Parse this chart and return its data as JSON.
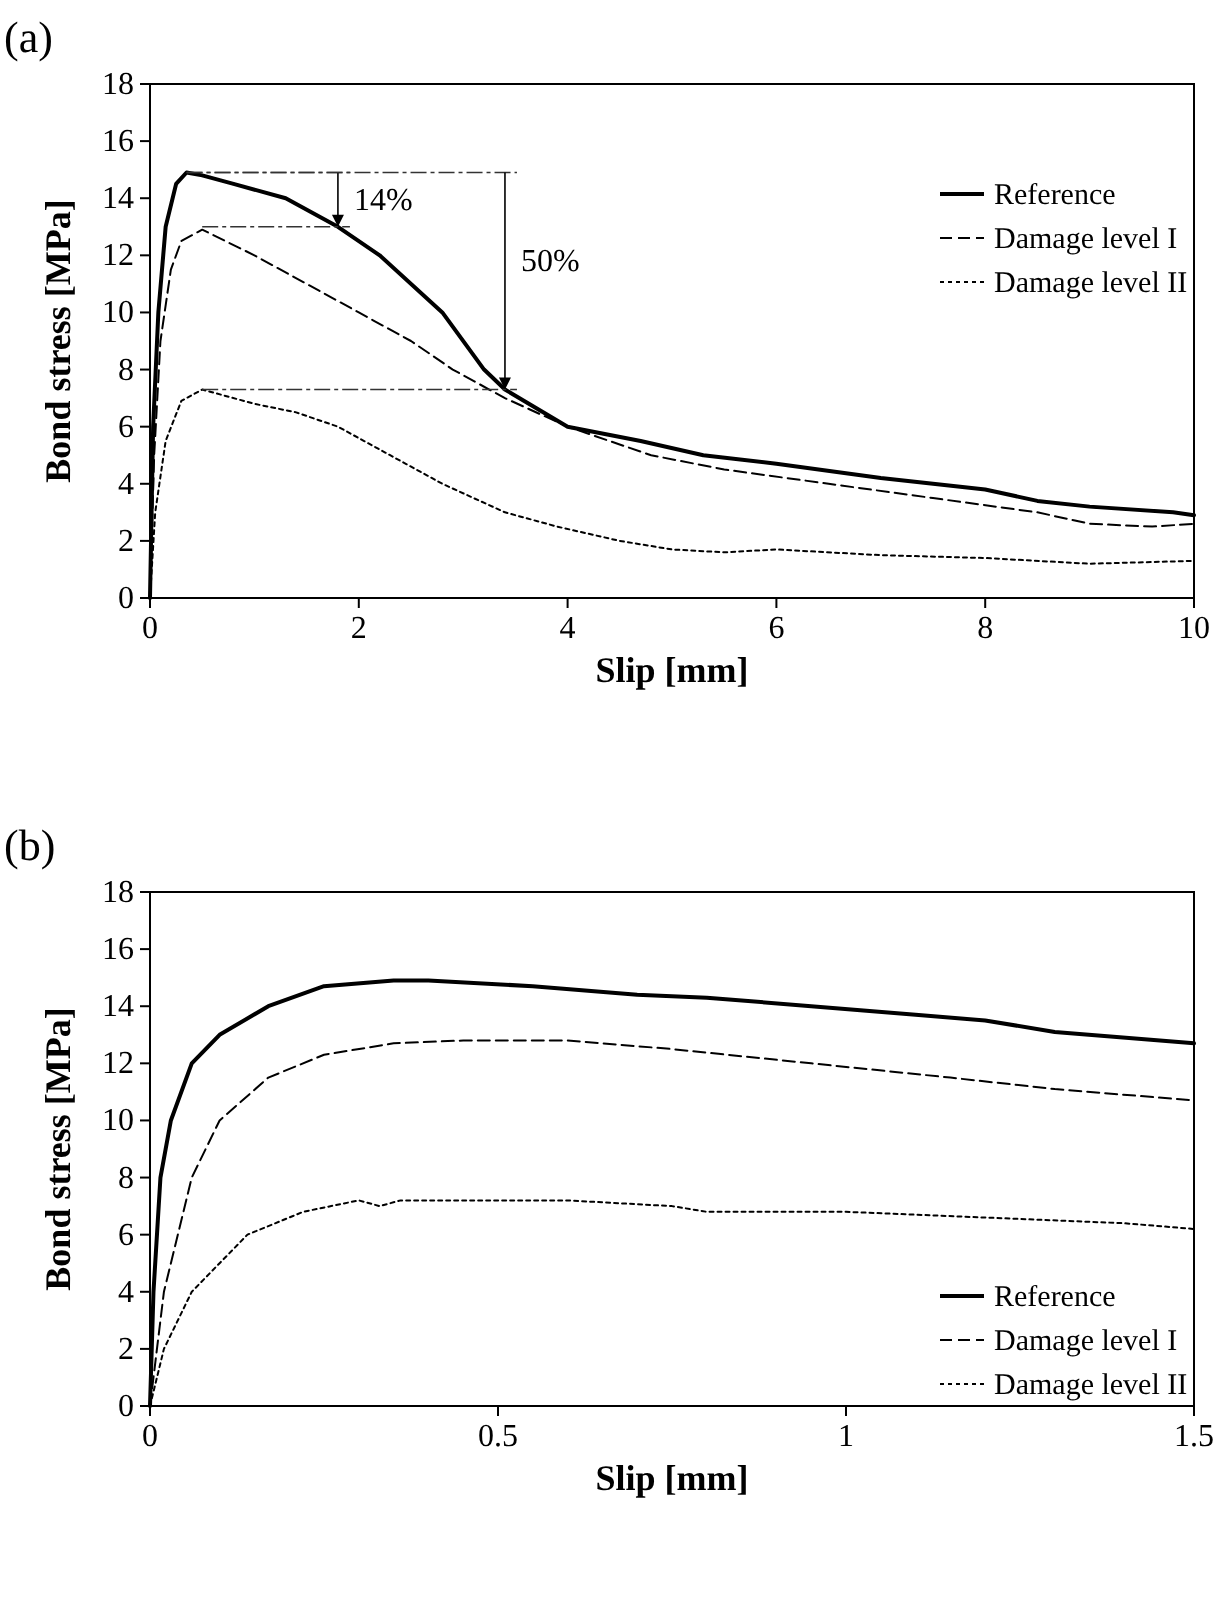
{
  "chart_data": [
    {
      "type": "line",
      "title": "(a)",
      "xlabel": "Slip [mm]",
      "ylabel": "Bond stress [MPa]",
      "xlim": [
        0,
        10
      ],
      "ylim": [
        0,
        18
      ],
      "xticks": [
        0,
        2,
        4,
        6,
        8,
        10
      ],
      "yticks": [
        0,
        2,
        4,
        6,
        8,
        10,
        12,
        14,
        16,
        18
      ],
      "legend": "top right",
      "grid": false,
      "annotations": [
        {
          "text": "14%",
          "x": 1.8,
          "y": 13
        },
        "50%"
      ],
      "series": [
        {
          "name": "Reference",
          "color": "#000000",
          "line_style": "solid",
          "x": [
            0,
            0.03,
            0.08,
            0.15,
            0.25,
            0.35,
            0.5,
            0.8,
            1.3,
            1.8,
            2.2,
            2.8,
            3.2,
            3.4,
            4,
            4.7,
            5.3,
            6,
            7,
            8,
            8.5,
            9,
            9.8,
            10
          ],
          "values": [
            0,
            6,
            10,
            13,
            14.5,
            14.9,
            14.8,
            14.5,
            14,
            13,
            12,
            10,
            8,
            7.3,
            6,
            5.5,
            5,
            4.7,
            4.2,
            3.8,
            3.4,
            3.2,
            3,
            2.9
          ]
        },
        {
          "name": "Damage level I",
          "color": "#000000",
          "line_style": "dashed",
          "x": [
            0,
            0.04,
            0.1,
            0.2,
            0.3,
            0.5,
            1,
            1.5,
            2,
            2.5,
            2.9,
            3.4,
            4,
            4.8,
            5.5,
            6.5,
            7.5,
            8.5,
            9,
            9.6,
            10
          ],
          "values": [
            0,
            5,
            9,
            11.5,
            12.5,
            12.9,
            12,
            11,
            10,
            9,
            8,
            7,
            6,
            5,
            4.5,
            4,
            3.5,
            3,
            2.6,
            2.5,
            2.6
          ]
        },
        {
          "name": "Damage level II",
          "color": "#000000",
          "line_style": "dotted",
          "x": [
            0,
            0.05,
            0.15,
            0.3,
            0.5,
            1,
            1.4,
            1.8,
            2.3,
            2.8,
            3.4,
            3.9,
            4.5,
            5,
            5.5,
            6,
            7,
            8,
            9,
            10
          ],
          "values": [
            0,
            3,
            5.5,
            6.9,
            7.3,
            6.8,
            6.5,
            6,
            5,
            4,
            3,
            2.5,
            2,
            1.7,
            1.6,
            1.7,
            1.5,
            1.4,
            1.2,
            1.3
          ]
        }
      ]
    },
    {
      "type": "line",
      "title": "(b)",
      "xlabel": "Slip [mm]",
      "ylabel": "Bond stress [MPa]",
      "xlim": [
        0,
        1.5
      ],
      "ylim": [
        0,
        18
      ],
      "xticks": [
        0,
        0.5,
        1,
        1.5
      ],
      "yticks": [
        0,
        2,
        4,
        6,
        8,
        10,
        12,
        14,
        16,
        18
      ],
      "legend": "bottom right",
      "grid": false,
      "series": [
        {
          "name": "Reference",
          "color": "#000000",
          "line_style": "solid",
          "x": [
            0,
            0.005,
            0.015,
            0.03,
            0.06,
            0.1,
            0.17,
            0.25,
            0.35,
            0.4,
            0.55,
            0.7,
            0.8,
            0.95,
            1.1,
            1.2,
            1.3,
            1.5
          ],
          "values": [
            0,
            4,
            8,
            10,
            12,
            13,
            14,
            14.7,
            14.9,
            14.9,
            14.7,
            14.4,
            14.3,
            14,
            13.7,
            13.5,
            13.1,
            12.7
          ]
        },
        {
          "name": "Damage level I",
          "color": "#000000",
          "line_style": "dashed",
          "x": [
            0,
            0.02,
            0.06,
            0.1,
            0.17,
            0.25,
            0.35,
            0.45,
            0.6,
            0.75,
            0.95,
            1.15,
            1.3,
            1.5
          ],
          "values": [
            0,
            4,
            8,
            10,
            11.5,
            12.3,
            12.7,
            12.8,
            12.8,
            12.5,
            12,
            11.5,
            11.1,
            10.7
          ]
        },
        {
          "name": "Damage level II",
          "color": "#000000",
          "line_style": "dotted",
          "x": [
            0,
            0.02,
            0.06,
            0.14,
            0.22,
            0.3,
            0.33,
            0.36,
            0.6,
            0.75,
            0.8,
            1,
            1.2,
            1.4,
            1.5
          ],
          "values": [
            0,
            2,
            4,
            6,
            6.8,
            7.2,
            7,
            7.2,
            7.2,
            7,
            6.8,
            6.8,
            6.6,
            6.4,
            6.2
          ]
        }
      ]
    }
  ]
}
